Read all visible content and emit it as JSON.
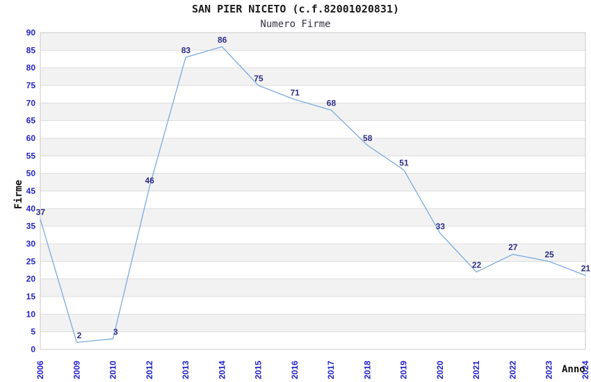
{
  "chart_data": {
    "type": "line",
    "title": "SAN PIER NICETO (c.f.82001020831)",
    "subtitle": "Numero Firme",
    "xlabel": "Anno",
    "ylabel": "Firme",
    "categories": [
      "2006",
      "2009",
      "2010",
      "2012",
      "2013",
      "2014",
      "2015",
      "2016",
      "2017",
      "2018",
      "2019",
      "2020",
      "2021",
      "2022",
      "2023",
      "2024"
    ],
    "values": [
      37,
      2,
      3,
      46,
      83,
      86,
      75,
      71,
      68,
      58,
      51,
      33,
      22,
      27,
      25,
      21
    ],
    "ylim": [
      0,
      90
    ],
    "ytick_step": 5,
    "grid": true,
    "legend_position": "none",
    "point_labels_visible": true,
    "colors": {
      "line": "#7aaade",
      "tick_label": "#2222cc",
      "data_label": "#2b2b85",
      "band_gray": "#f2f2f2",
      "band_white": "#ffffff",
      "gridline": "#dcdcdc",
      "plot_border": "#c9c9c9",
      "background": "#ffffff"
    }
  }
}
